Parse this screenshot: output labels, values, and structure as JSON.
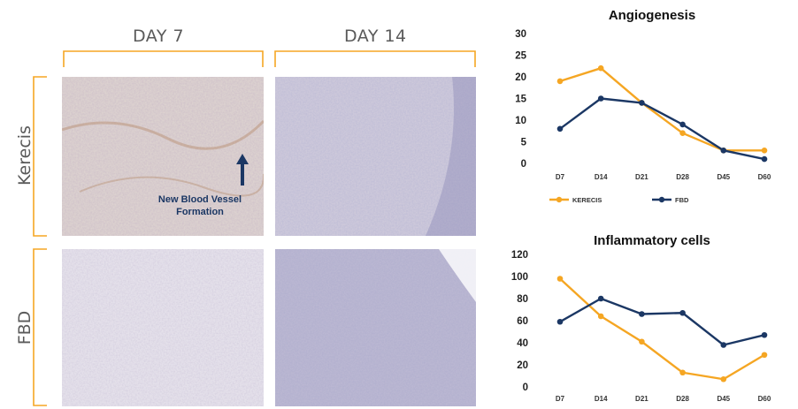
{
  "columns": {
    "day7": "DAY 7",
    "day14": "DAY 14"
  },
  "rows": {
    "kerecis": "Kerecis",
    "fbd": "FBD"
  },
  "annotation": {
    "line1": "New Blood Vessel",
    "line2": "Formation"
  },
  "colors": {
    "bracket": "#f5a623",
    "kerecis": "#f5a623",
    "fbd": "#1b3764",
    "tissue_bg": "#d9d2da"
  },
  "chart_data": [
    {
      "type": "line",
      "title": "Angiogenesis",
      "categories": [
        "D7",
        "D14",
        "D21",
        "D28",
        "D45",
        "D60"
      ],
      "ylim": [
        0,
        30
      ],
      "yticks": [
        0,
        5,
        10,
        15,
        20,
        25,
        30
      ],
      "grid": false,
      "legend": "bottom",
      "series": [
        {
          "name": "KERECIS",
          "color": "#f5a623",
          "values": [
            19,
            22,
            14,
            7,
            3,
            3
          ]
        },
        {
          "name": "FBD",
          "color": "#1b3764",
          "values": [
            8,
            15,
            14,
            9,
            3,
            1
          ]
        }
      ]
    },
    {
      "type": "line",
      "title": "Inflammatory cells",
      "categories": [
        "D7",
        "D14",
        "D21",
        "D28",
        "D45",
        "D60"
      ],
      "ylim": [
        0,
        120
      ],
      "yticks": [
        0,
        20,
        40,
        60,
        80,
        100,
        120
      ],
      "grid": false,
      "series": [
        {
          "color": "#f5a623",
          "values": [
            98,
            64,
            41,
            13,
            7,
            29
          ]
        },
        {
          "color": "#1b3764",
          "values": [
            59,
            80,
            66,
            67,
            38,
            47
          ]
        }
      ]
    }
  ]
}
